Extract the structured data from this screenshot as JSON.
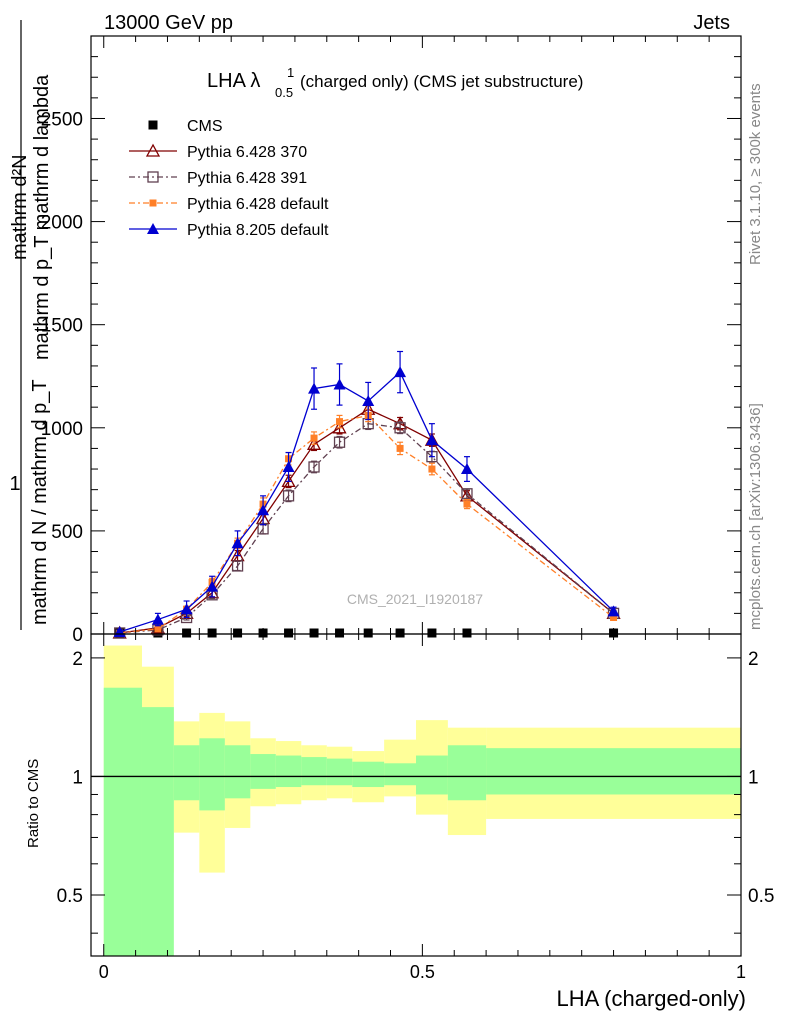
{
  "header": {
    "left": "13000 GeV pp",
    "right": "Jets"
  },
  "side_labels": {
    "rivet": "Rivet 3.1.10, ≥ 300k events",
    "mcplots": "mcplots.cern.ch [arXiv:1306.3436]"
  },
  "watermark": "CMS_2021_I1920187",
  "chart_data": [
    {
      "type": "line",
      "title": "LHA λ",
      "title_sup": "1",
      "title_sub": "0.5",
      "title_suffix": "(charged only) (CMS jet substructure)",
      "ylabel_numerator": "1",
      "ylabel_numerator_text": "mathrm d²N",
      "ylabel_line1": "mathrm d p_T mathrm d lambda",
      "ylabel_denominator": "mathrm d N / mathrm d p_T",
      "xlim": [
        -0.02,
        1.0
      ],
      "ylim": [
        0,
        2900
      ],
      "yticks": [
        0,
        500,
        1000,
        1500,
        2000,
        2500
      ],
      "ytick_labels": [
        "0",
        "500",
        "1000",
        "1500",
        "2000",
        "2500"
      ],
      "series": [
        {
          "name": "CMS",
          "color": "#000000",
          "marker": "square-filled",
          "x": [
            0.025,
            0.085,
            0.13,
            0.17,
            0.21,
            0.25,
            0.29,
            0.33,
            0.37,
            0.415,
            0.465,
            0.515,
            0.57,
            0.8
          ],
          "y": [
            0,
            0,
            0,
            0,
            0,
            0,
            0,
            0,
            0,
            0,
            0,
            0,
            0,
            0
          ]
        },
        {
          "name": "Pythia 6.428 370",
          "color": "#800000",
          "marker": "triangle-open",
          "dash": "",
          "x": [
            0.025,
            0.085,
            0.13,
            0.17,
            0.21,
            0.25,
            0.29,
            0.33,
            0.37,
            0.415,
            0.465,
            0.515,
            0.57,
            0.8
          ],
          "y": [
            5,
            30,
            100,
            200,
            380,
            560,
            740,
            920,
            1000,
            1090,
            1020,
            940,
            670,
            100
          ],
          "err": [
            5,
            10,
            15,
            20,
            25,
            30,
            30,
            30,
            30,
            30,
            30,
            30,
            25,
            15
          ]
        },
        {
          "name": "Pythia 6.428 391",
          "color": "#604050",
          "marker": "square-open",
          "dash": "6,3,2,3",
          "x": [
            0.025,
            0.085,
            0.13,
            0.17,
            0.21,
            0.25,
            0.29,
            0.33,
            0.37,
            0.415,
            0.465,
            0.515,
            0.57,
            0.8
          ],
          "y": [
            5,
            20,
            80,
            190,
            330,
            510,
            670,
            810,
            930,
            1020,
            1000,
            860,
            680,
            100
          ],
          "err": [
            5,
            8,
            12,
            18,
            22,
            25,
            28,
            28,
            28,
            28,
            28,
            26,
            22,
            12
          ]
        },
        {
          "name": "Pythia 6.428 default",
          "color": "#ff7f27",
          "marker": "square-filled-small",
          "dash": "6,3,2,3",
          "x": [
            0.025,
            0.085,
            0.13,
            0.17,
            0.21,
            0.25,
            0.29,
            0.33,
            0.37,
            0.415,
            0.465,
            0.515,
            0.57,
            0.8
          ],
          "y": [
            5,
            25,
            120,
            250,
            440,
            630,
            850,
            950,
            1030,
            1060,
            900,
            800,
            630,
            80
          ],
          "err": [
            5,
            10,
            15,
            20,
            25,
            30,
            30,
            30,
            30,
            30,
            30,
            28,
            22,
            12
          ]
        },
        {
          "name": "Pythia 8.205 default",
          "color": "#0000d0",
          "marker": "triangle-filled",
          "dash": "",
          "x": [
            0.025,
            0.085,
            0.13,
            0.17,
            0.21,
            0.25,
            0.29,
            0.33,
            0.37,
            0.415,
            0.465,
            0.515,
            0.57,
            0.8
          ],
          "y": [
            10,
            70,
            120,
            230,
            440,
            600,
            810,
            1190,
            1210,
            1130,
            1270,
            940,
            800,
            110
          ],
          "err": [
            10,
            30,
            40,
            50,
            60,
            70,
            70,
            100,
            100,
            90,
            100,
            80,
            60,
            20
          ]
        }
      ]
    },
    {
      "type": "area",
      "ylabel": "Ratio to CMS",
      "xlabel": "LHA (charged-only)",
      "xlim": [
        -0.02,
        1.0
      ],
      "ylim": [
        0.35,
        2.3
      ],
      "yscale": "log",
      "yticks": [
        0.5,
        1,
        2
      ],
      "ytick_labels": [
        "0.5",
        "1",
        "2"
      ],
      "xticks": [
        0,
        0.5,
        1
      ],
      "xtick_labels": [
        "0",
        "0.5",
        "1"
      ],
      "bins": [
        0.0,
        0.06,
        0.11,
        0.15,
        0.19,
        0.23,
        0.27,
        0.31,
        0.35,
        0.39,
        0.44,
        0.49,
        0.54,
        0.6,
        1.0
      ],
      "green_band": {
        "color": "#99ff99",
        "upper": [
          1.68,
          1.5,
          1.2,
          1.25,
          1.2,
          1.14,
          1.13,
          1.12,
          1.11,
          1.09,
          1.08,
          1.13,
          1.2,
          1.18
        ],
        "lower": [
          0.33,
          0.33,
          0.87,
          0.82,
          0.88,
          0.93,
          0.94,
          0.95,
          0.95,
          0.94,
          0.95,
          0.9,
          0.87,
          0.9
        ]
      },
      "yellow_band": {
        "color": "#ffff99",
        "upper": [
          2.15,
          1.9,
          1.38,
          1.45,
          1.38,
          1.25,
          1.23,
          1.2,
          1.19,
          1.16,
          1.24,
          1.39,
          1.33,
          1.33
        ],
        "lower": [
          0.33,
          0.57,
          0.72,
          0.57,
          0.74,
          0.84,
          0.85,
          0.87,
          0.88,
          0.86,
          0.89,
          0.8,
          0.71,
          0.78
        ]
      },
      "reference_line": 1
    }
  ]
}
